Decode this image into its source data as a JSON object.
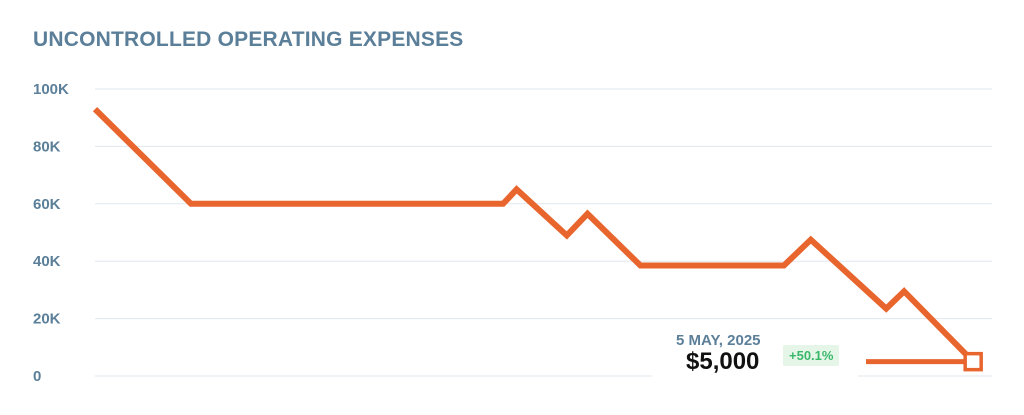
{
  "chart_data": {
    "type": "line",
    "title": "UNCONTROLLED OPERATING EXPENSES",
    "xlabel": "",
    "ylabel": "",
    "ylim": [
      0,
      100000
    ],
    "yticks": [
      {
        "value": 100000,
        "label": "100K"
      },
      {
        "value": 80000,
        "label": "80K"
      },
      {
        "value": 60000,
        "label": "60K"
      },
      {
        "value": 40000,
        "label": "40K"
      },
      {
        "value": 20000,
        "label": "20K"
      },
      {
        "value": 0,
        "label": "0"
      }
    ],
    "grid": true,
    "colors": {
      "series": "#e8652e",
      "axis_text": "#5b7f99",
      "grid": "#dfe7ee",
      "positive": "#3ab86a"
    },
    "series": [
      {
        "values": [
          93000,
          60000,
          60000,
          65000,
          49000,
          56500,
          38500,
          38500,
          47500,
          23500,
          29500,
          5000
        ]
      }
    ],
    "highlight": {
      "date": "5 MAY, 2025",
      "value": "$5,000",
      "change": "+50.1%"
    }
  }
}
